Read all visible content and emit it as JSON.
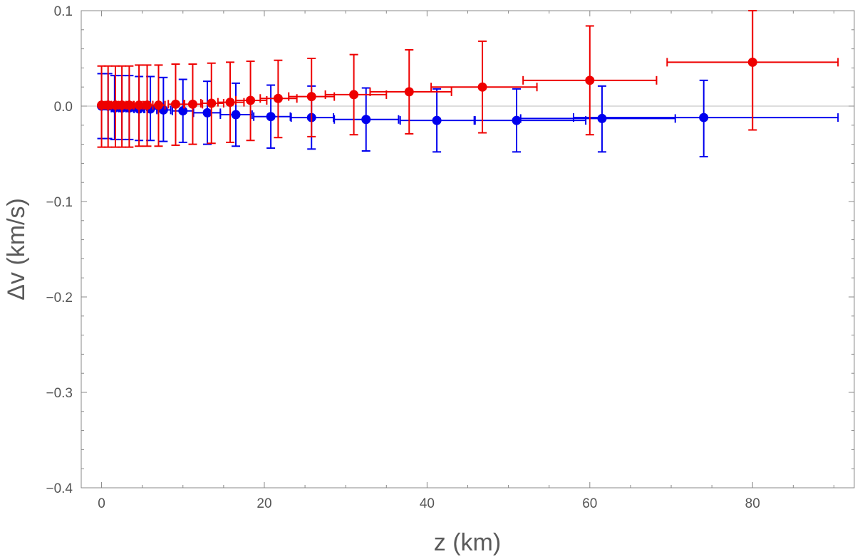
{
  "chart_data": {
    "type": "scatter",
    "title": "",
    "xlabel": "z (km)",
    "ylabel": "Δv (km/s)",
    "xlim": [
      -2.5,
      92.5
    ],
    "ylim": [
      -0.4,
      0.1
    ],
    "x_ticks": [
      0,
      20,
      40,
      60,
      80
    ],
    "x_tick_labels": [
      "0",
      "20",
      "40",
      "60",
      "80"
    ],
    "y_ticks": [
      0.1,
      0.0,
      -0.1,
      -0.2,
      -0.3,
      -0.4
    ],
    "y_tick_labels": [
      "0.1",
      "0.0",
      "−0.1",
      "−0.2",
      "−0.3",
      "−0.4"
    ],
    "reference_line_y": 0.0,
    "grid": false,
    "series": [
      {
        "color": "#0000ee",
        "points": [
          {
            "x": 0.0,
            "xlo": 0.0,
            "xhi": 0.4,
            "y": 0.0,
            "ylo": -0.034,
            "yhi": 0.034
          },
          {
            "x": 0.8,
            "xlo": 0.5,
            "xhi": 1.2,
            "y": 0.0,
            "ylo": -0.034,
            "yhi": 0.034
          },
          {
            "x": 1.6,
            "xlo": 1.2,
            "xhi": 2.1,
            "y": -0.002,
            "ylo": -0.035,
            "yhi": 0.032
          },
          {
            "x": 2.5,
            "xlo": 2.1,
            "xhi": 3.0,
            "y": -0.002,
            "ylo": -0.035,
            "yhi": 0.032
          },
          {
            "x": 3.4,
            "xlo": 3.0,
            "xhi": 3.9,
            "y": -0.002,
            "ylo": -0.035,
            "yhi": 0.032
          },
          {
            "x": 4.6,
            "xlo": 4.0,
            "xhi": 5.2,
            "y": -0.003,
            "ylo": -0.036,
            "yhi": 0.031
          },
          {
            "x": 6.0,
            "xlo": 5.3,
            "xhi": 6.8,
            "y": -0.003,
            "ylo": -0.036,
            "yhi": 0.031
          },
          {
            "x": 7.6,
            "xlo": 6.8,
            "xhi": 8.5,
            "y": -0.004,
            "ylo": -0.037,
            "yhi": 0.03
          },
          {
            "x": 10.0,
            "xlo": 8.7,
            "xhi": 11.2,
            "y": -0.005,
            "ylo": -0.038,
            "yhi": 0.028
          },
          {
            "x": 13.0,
            "xlo": 11.3,
            "xhi": 14.6,
            "y": -0.007,
            "ylo": -0.04,
            "yhi": 0.026
          },
          {
            "x": 16.5,
            "xlo": 14.6,
            "xhi": 18.5,
            "y": -0.009,
            "ylo": -0.042,
            "yhi": 0.024
          },
          {
            "x": 20.8,
            "xlo": 18.7,
            "xhi": 23.2,
            "y": -0.011,
            "ylo": -0.044,
            "yhi": 0.022
          },
          {
            "x": 25.8,
            "xlo": 23.3,
            "xhi": 28.5,
            "y": -0.012,
            "ylo": -0.045,
            "yhi": 0.021
          },
          {
            "x": 32.5,
            "xlo": 28.6,
            "xhi": 36.5,
            "y": -0.014,
            "ylo": -0.047,
            "yhi": 0.019
          },
          {
            "x": 41.2,
            "xlo": 36.7,
            "xhi": 45.8,
            "y": -0.015,
            "ylo": -0.048,
            "yhi": 0.018
          },
          {
            "x": 51.0,
            "xlo": 45.9,
            "xhi": 59.5,
            "y": -0.015,
            "ylo": -0.048,
            "yhi": 0.018
          },
          {
            "x": 61.5,
            "xlo": 51.5,
            "xhi": 70.5,
            "y": -0.013,
            "ylo": -0.048,
            "yhi": 0.021
          },
          {
            "x": 74.0,
            "xlo": 58.0,
            "xhi": 90.5,
            "y": -0.012,
            "ylo": -0.053,
            "yhi": 0.027
          }
        ]
      },
      {
        "color": "#ee0000",
        "points": [
          {
            "x": 0.0,
            "xlo": 0.0,
            "xhi": 0.4,
            "y": 0.001,
            "ylo": -0.043,
            "yhi": 0.042
          },
          {
            "x": 0.8,
            "xlo": 0.5,
            "xhi": 1.2,
            "y": 0.001,
            "ylo": -0.043,
            "yhi": 0.042
          },
          {
            "x": 1.7,
            "xlo": 1.2,
            "xhi": 2.1,
            "y": 0.001,
            "ylo": -0.043,
            "yhi": 0.042
          },
          {
            "x": 2.5,
            "xlo": 2.1,
            "xhi": 3.0,
            "y": 0.001,
            "ylo": -0.043,
            "yhi": 0.042
          },
          {
            "x": 3.4,
            "xlo": 3.0,
            "xhi": 3.9,
            "y": 0.001,
            "ylo": -0.043,
            "yhi": 0.042
          },
          {
            "x": 4.6,
            "xlo": 4.0,
            "xhi": 5.2,
            "y": 0.001,
            "ylo": -0.042,
            "yhi": 0.043
          },
          {
            "x": 5.6,
            "xlo": 5.0,
            "xhi": 6.3,
            "y": 0.001,
            "ylo": -0.042,
            "yhi": 0.043
          },
          {
            "x": 7.0,
            "xlo": 6.3,
            "xhi": 7.8,
            "y": 0.001,
            "ylo": -0.042,
            "yhi": 0.043
          },
          {
            "x": 9.1,
            "xlo": 8.2,
            "xhi": 10.2,
            "y": 0.002,
            "ylo": -0.041,
            "yhi": 0.044
          },
          {
            "x": 11.2,
            "xlo": 10.1,
            "xhi": 12.4,
            "y": 0.002,
            "ylo": -0.04,
            "yhi": 0.044
          },
          {
            "x": 13.5,
            "xlo": 12.2,
            "xhi": 15.0,
            "y": 0.003,
            "ylo": -0.039,
            "yhi": 0.045
          },
          {
            "x": 15.8,
            "xlo": 14.3,
            "xhi": 17.5,
            "y": 0.004,
            "ylo": -0.038,
            "yhi": 0.046
          },
          {
            "x": 18.3,
            "xlo": 16.5,
            "xhi": 20.3,
            "y": 0.006,
            "ylo": -0.036,
            "yhi": 0.047
          },
          {
            "x": 21.7,
            "xlo": 19.5,
            "xhi": 24.0,
            "y": 0.008,
            "ylo": -0.033,
            "yhi": 0.048
          },
          {
            "x": 25.8,
            "xlo": 23.0,
            "xhi": 28.6,
            "y": 0.01,
            "ylo": -0.032,
            "yhi": 0.05
          },
          {
            "x": 31.0,
            "xlo": 27.5,
            "xhi": 35.0,
            "y": 0.012,
            "ylo": -0.03,
            "yhi": 0.054
          },
          {
            "x": 37.8,
            "xlo": 33.0,
            "xhi": 43.0,
            "y": 0.015,
            "ylo": -0.029,
            "yhi": 0.059
          },
          {
            "x": 46.8,
            "xlo": 40.5,
            "xhi": 53.5,
            "y": 0.02,
            "ylo": -0.028,
            "yhi": 0.068
          },
          {
            "x": 60.0,
            "xlo": 51.8,
            "xhi": 68.2,
            "y": 0.027,
            "ylo": -0.03,
            "yhi": 0.084
          },
          {
            "x": 80.0,
            "xlo": 69.5,
            "xhi": 90.5,
            "y": 0.046,
            "ylo": -0.025,
            "yhi": 0.1
          }
        ]
      }
    ]
  }
}
